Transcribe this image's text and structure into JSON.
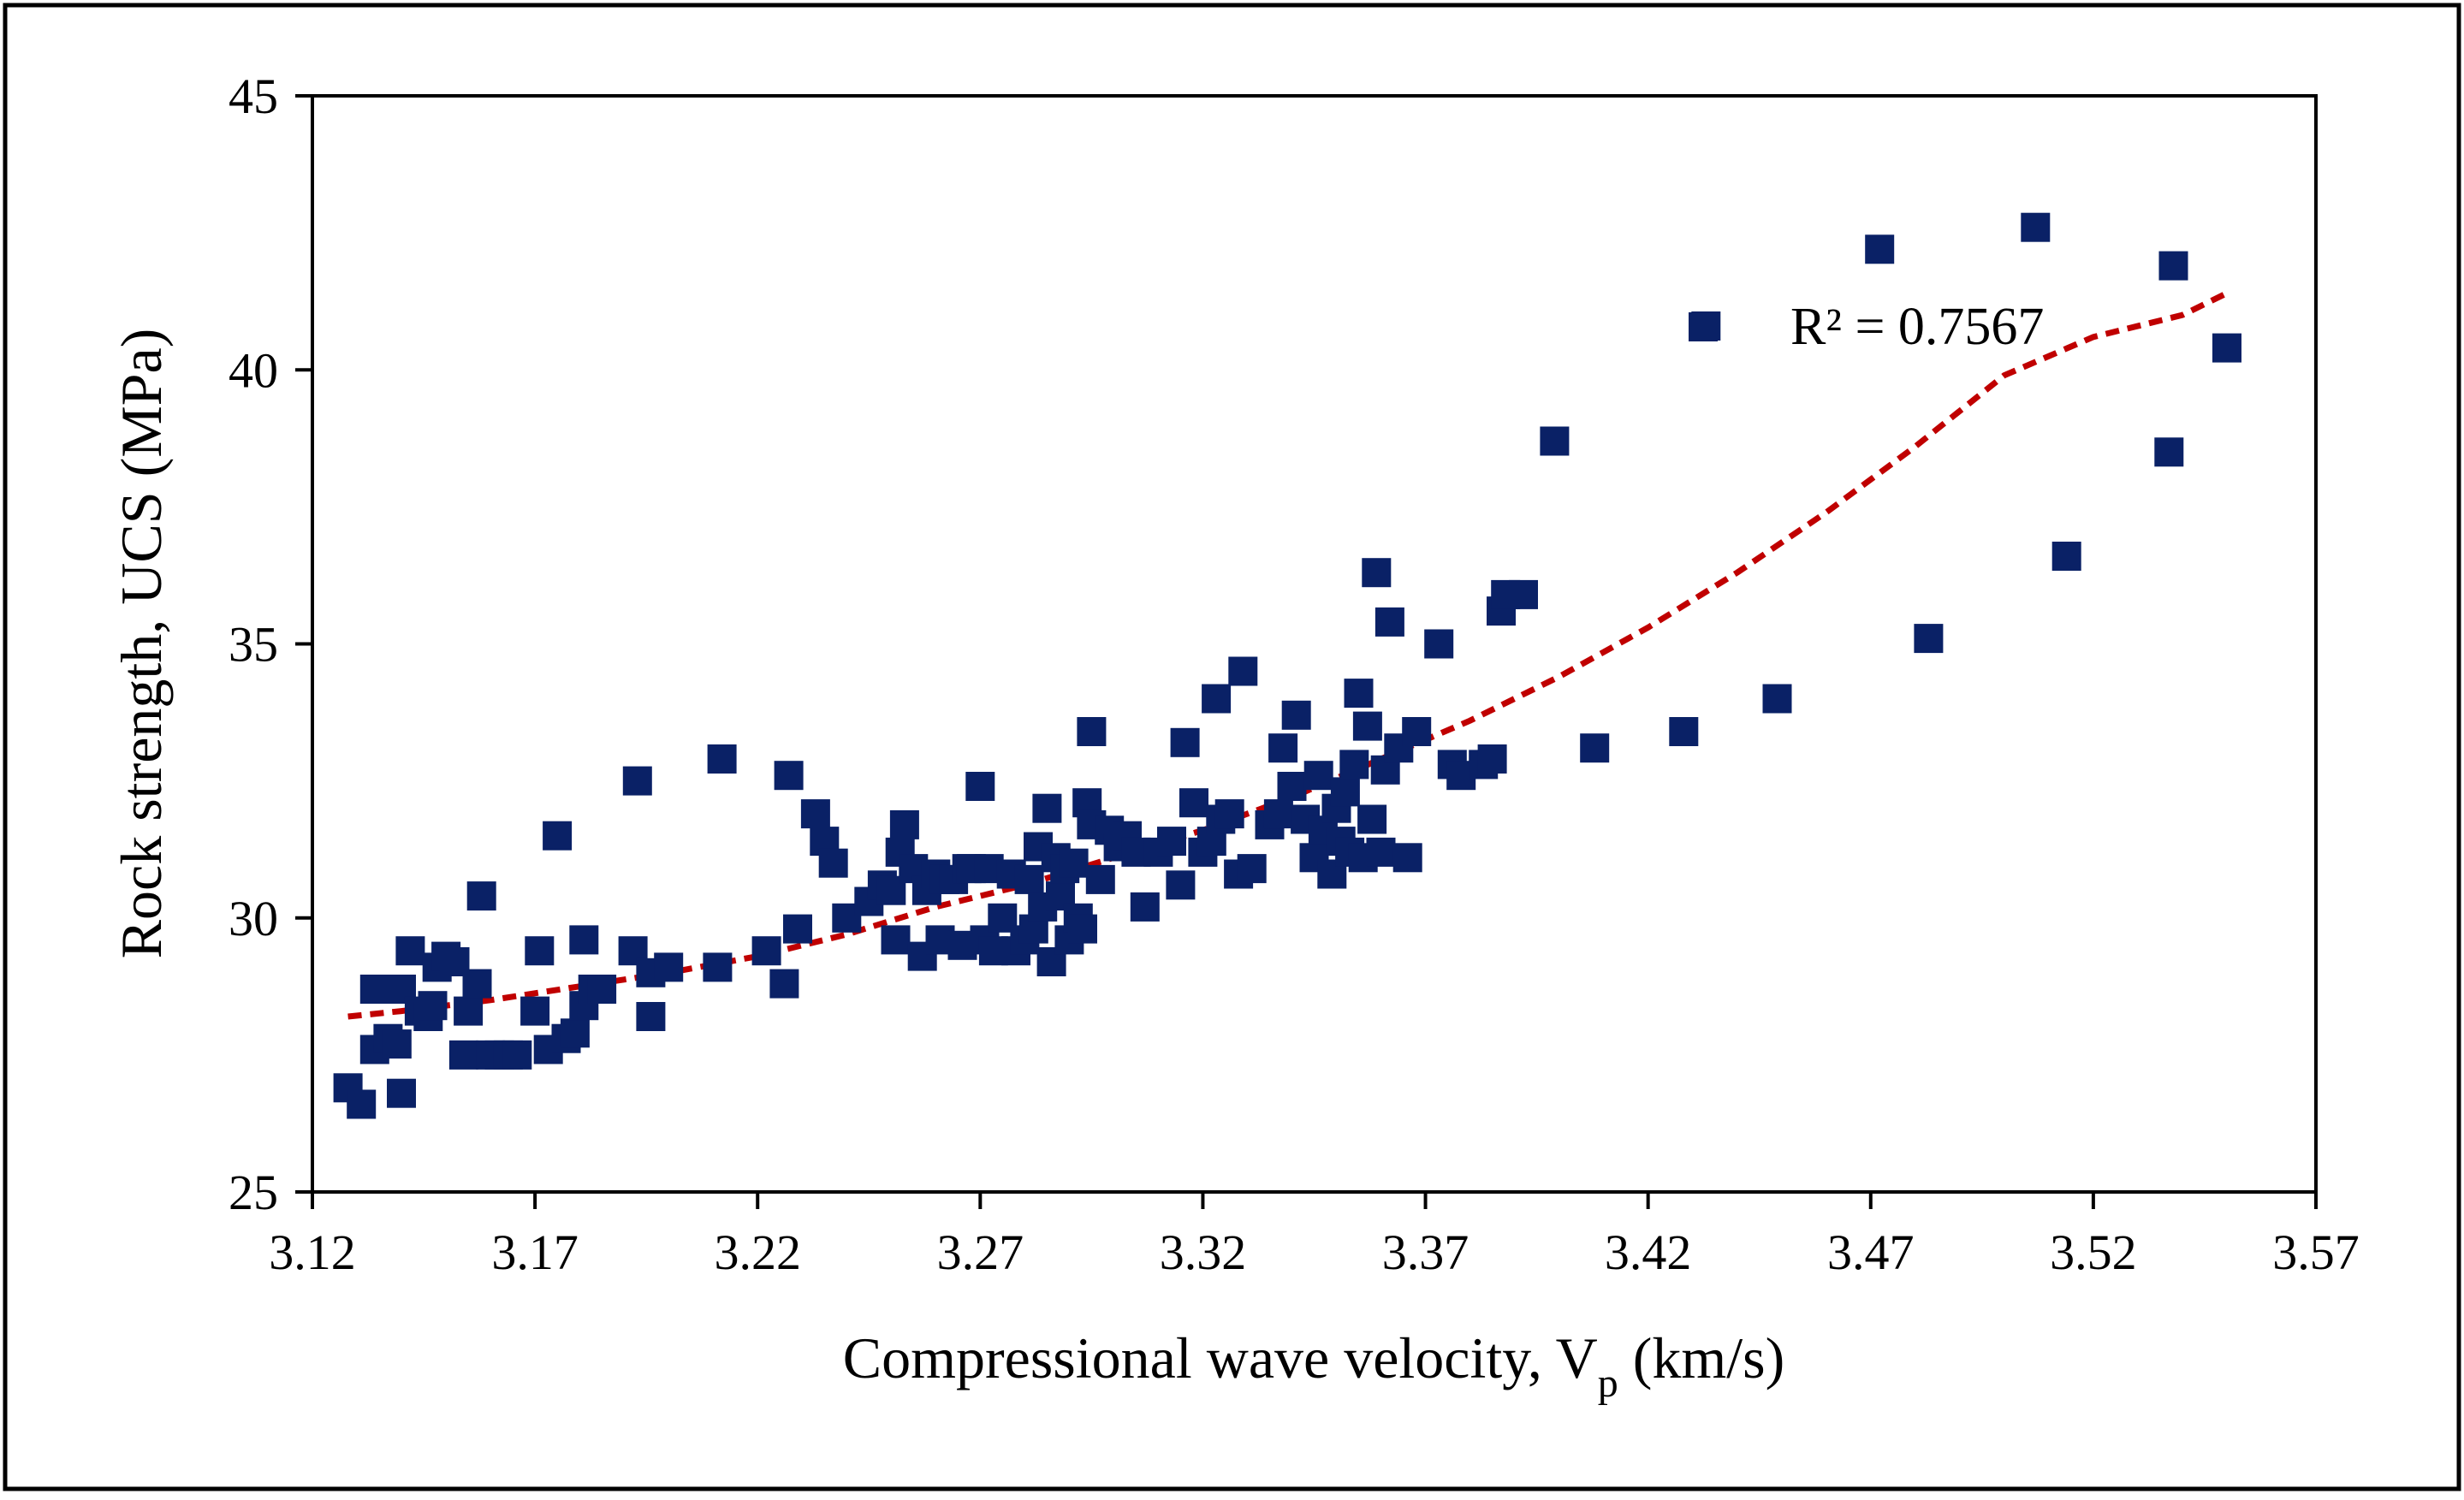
{
  "chart_data": {
    "type": "scatter",
    "title": "",
    "xlabel": "Compressional wave velocity, V",
    "xlabel_subscript": "p",
    "xlabel_suffix": " (km/s)",
    "ylabel": "Rock strength, UCS (MPa)",
    "xlim": [
      3.12,
      3.57
    ],
    "ylim": [
      25,
      45
    ],
    "xticks": [
      3.12,
      3.17,
      3.22,
      3.27,
      3.32,
      3.37,
      3.42,
      3.47,
      3.52,
      3.57
    ],
    "xtick_labels": [
      "3.12",
      "3.17",
      "3.22",
      "3.27",
      "3.32",
      "3.37",
      "3.42",
      "3.47",
      "3.52",
      "3.57"
    ],
    "yticks": [
      25,
      30,
      35,
      40,
      45
    ],
    "ytick_labels": [
      "25",
      "30",
      "35",
      "40",
      "45"
    ],
    "grid": false,
    "marker_color": "#0a2166",
    "trend_color": "#c00000",
    "r2_label": "R² = 0.7567",
    "trendline": {
      "type": "polynomial",
      "x": [
        3.128,
        3.14,
        3.16,
        3.18,
        3.2,
        3.22,
        3.24,
        3.26,
        3.28,
        3.3,
        3.32,
        3.34,
        3.36,
        3.38,
        3.4,
        3.42,
        3.44,
        3.46,
        3.48,
        3.5,
        3.52,
        3.54,
        3.55
      ],
      "y": [
        28.2,
        28.3,
        28.5,
        28.75,
        29.0,
        29.3,
        29.7,
        30.2,
        30.6,
        31.1,
        31.6,
        32.2,
        32.9,
        33.6,
        34.4,
        35.3,
        36.3,
        37.4,
        38.6,
        39.9,
        40.6,
        41.0,
        41.4
      ]
    },
    "series": [
      {
        "points": [
          [
            3.128,
            26.9
          ],
          [
            3.131,
            26.6
          ],
          [
            3.134,
            27.6
          ],
          [
            3.134,
            28.7
          ],
          [
            3.137,
            27.8
          ],
          [
            3.139,
            27.7
          ],
          [
            3.14,
            28.7
          ],
          [
            3.14,
            26.8
          ],
          [
            3.142,
            29.4
          ],
          [
            3.144,
            28.3
          ],
          [
            3.146,
            28.2
          ],
          [
            3.147,
            28.4
          ],
          [
            3.148,
            29.1
          ],
          [
            3.15,
            29.3
          ],
          [
            3.152,
            29.2
          ],
          [
            3.154,
            27.5
          ],
          [
            3.155,
            28.3
          ],
          [
            3.157,
            28.8
          ],
          [
            3.158,
            30.4
          ],
          [
            3.16,
            27.5
          ],
          [
            3.162,
            27.5
          ],
          [
            3.164,
            27.5
          ],
          [
            3.166,
            27.5
          ],
          [
            3.17,
            28.3
          ],
          [
            3.171,
            29.4
          ],
          [
            3.173,
            27.6
          ],
          [
            3.175,
            31.5
          ],
          [
            3.177,
            27.8
          ],
          [
            3.179,
            27.9
          ],
          [
            3.181,
            28.4
          ],
          [
            3.181,
            29.6
          ],
          [
            3.183,
            28.7
          ],
          [
            3.185,
            28.7
          ],
          [
            3.192,
            29.4
          ],
          [
            3.193,
            32.5
          ],
          [
            3.196,
            29.0
          ],
          [
            3.196,
            28.2
          ],
          [
            3.2,
            29.1
          ],
          [
            3.211,
            29.1
          ],
          [
            3.212,
            32.9
          ],
          [
            3.222,
            29.4
          ],
          [
            3.226,
            28.8
          ],
          [
            3.227,
            32.6
          ],
          [
            3.229,
            29.8
          ],
          [
            3.233,
            31.9
          ],
          [
            3.235,
            31.4
          ],
          [
            3.237,
            31.0
          ],
          [
            3.24,
            30.0
          ],
          [
            3.245,
            30.3
          ],
          [
            3.248,
            30.6
          ],
          [
            3.25,
            30.5
          ],
          [
            3.251,
            29.6
          ],
          [
            3.252,
            31.2
          ],
          [
            3.253,
            31.7
          ],
          [
            3.255,
            30.9
          ],
          [
            3.257,
            29.3
          ],
          [
            3.258,
            30.5
          ],
          [
            3.26,
            30.8
          ],
          [
            3.261,
            29.6
          ],
          [
            3.262,
            30.7
          ],
          [
            3.264,
            30.7
          ],
          [
            3.266,
            29.5
          ],
          [
            3.267,
            30.9
          ],
          [
            3.268,
            30.9
          ],
          [
            3.27,
            32.4
          ],
          [
            3.271,
            29.6
          ],
          [
            3.272,
            30.9
          ],
          [
            3.273,
            29.4
          ],
          [
            3.275,
            30.0
          ],
          [
            3.277,
            30.8
          ],
          [
            3.278,
            29.4
          ],
          [
            3.28,
            29.6
          ],
          [
            3.281,
            30.7
          ],
          [
            3.282,
            29.8
          ],
          [
            3.283,
            31.3
          ],
          [
            3.284,
            30.2
          ],
          [
            3.285,
            32.0
          ],
          [
            3.286,
            29.2
          ],
          [
            3.287,
            31.1
          ],
          [
            3.288,
            30.4
          ],
          [
            3.289,
            30.9
          ],
          [
            3.29,
            29.6
          ],
          [
            3.291,
            31.0
          ],
          [
            3.292,
            30.0
          ],
          [
            3.293,
            29.8
          ],
          [
            3.294,
            32.1
          ],
          [
            3.295,
            31.7
          ],
          [
            3.295,
            33.4
          ],
          [
            3.297,
            30.7
          ],
          [
            3.299,
            31.6
          ],
          [
            3.301,
            31.3
          ],
          [
            3.303,
            31.5
          ],
          [
            3.305,
            31.2
          ],
          [
            3.307,
            30.2
          ],
          [
            3.31,
            31.2
          ],
          [
            3.313,
            31.4
          ],
          [
            3.315,
            30.6
          ],
          [
            3.316,
            33.2
          ],
          [
            3.318,
            32.1
          ],
          [
            3.32,
            31.2
          ],
          [
            3.322,
            31.4
          ],
          [
            3.323,
            34.0
          ],
          [
            3.324,
            31.8
          ],
          [
            3.326,
            31.9
          ],
          [
            3.328,
            30.8
          ],
          [
            3.329,
            34.5
          ],
          [
            3.331,
            30.9
          ],
          [
            3.335,
            31.7
          ],
          [
            3.337,
            31.9
          ],
          [
            3.338,
            33.1
          ],
          [
            3.34,
            32.4
          ],
          [
            3.341,
            33.7
          ],
          [
            3.343,
            31.8
          ],
          [
            3.345,
            31.1
          ],
          [
            3.346,
            32.6
          ],
          [
            3.347,
            31.6
          ],
          [
            3.349,
            30.8
          ],
          [
            3.35,
            32.0
          ],
          [
            3.351,
            31.4
          ],
          [
            3.352,
            32.3
          ],
          [
            3.353,
            31.2
          ],
          [
            3.354,
            32.8
          ],
          [
            3.355,
            34.1
          ],
          [
            3.356,
            31.1
          ],
          [
            3.357,
            33.5
          ],
          [
            3.358,
            31.8
          ],
          [
            3.359,
            36.3
          ],
          [
            3.36,
            31.2
          ],
          [
            3.361,
            32.7
          ],
          [
            3.362,
            35.4
          ],
          [
            3.364,
            33.1
          ],
          [
            3.366,
            31.1
          ],
          [
            3.368,
            33.4
          ],
          [
            3.373,
            35.0
          ],
          [
            3.376,
            32.8
          ],
          [
            3.378,
            32.6
          ],
          [
            3.383,
            32.8
          ],
          [
            3.385,
            32.9
          ],
          [
            3.387,
            35.6
          ],
          [
            3.388,
            35.9
          ],
          [
            3.392,
            35.9
          ],
          [
            3.399,
            38.7
          ],
          [
            3.408,
            33.1
          ],
          [
            3.428,
            33.4
          ],
          [
            3.433,
            40.8
          ],
          [
            3.449,
            34.0
          ],
          [
            3.472,
            42.2
          ],
          [
            3.483,
            35.1
          ],
          [
            3.507,
            42.6
          ],
          [
            3.514,
            36.6
          ],
          [
            3.537,
            38.5
          ],
          [
            3.538,
            41.9
          ],
          [
            3.55,
            40.4
          ]
        ]
      }
    ]
  }
}
